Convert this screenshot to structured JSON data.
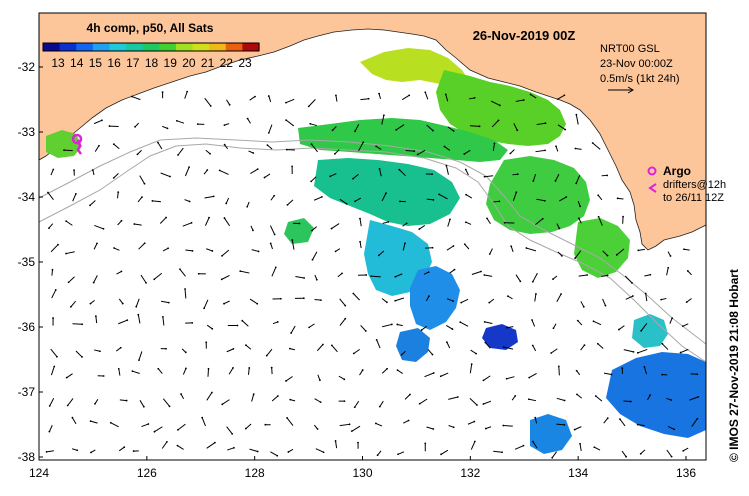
{
  "map": {
    "product_label": "4h comp, p50, All Sats",
    "date_title": "26-Nov-2019 00Z",
    "current_info": {
      "line1": "NRT00 GSL",
      "line2": "23-Nov 00:00Z",
      "line3": "0.5m/s (1kt 24h)"
    },
    "argo_label": "Argo",
    "drifters_line1": "drifters@12h",
    "drifters_line2": "to 26/11 12Z",
    "credit": "© IMOS 27-Nov-2019 21:08 Hobart",
    "colorbar": {
      "ticks": [
        "13",
        "14",
        "15",
        "16",
        "17",
        "18",
        "19",
        "20",
        "21",
        "22",
        "23"
      ],
      "colors": [
        "#0a0a8c",
        "#0b2fd0",
        "#1565f0",
        "#1fa0f0",
        "#20c8d8",
        "#18c8a0",
        "#20c860",
        "#40d030",
        "#a0e020",
        "#d0e018",
        "#f0b818",
        "#e86010",
        "#b00808"
      ]
    },
    "lon_ticks": [
      "124",
      "126",
      "128",
      "130",
      "132",
      "134",
      "136"
    ],
    "lat_ticks": [
      "-32",
      "-33",
      "-34",
      "-35",
      "-36",
      "-37",
      "-38"
    ],
    "colors": {
      "land": "#fdc59a",
      "ocean": "#ffffff",
      "argo": "#e020e0",
      "drifter": "#e020e0",
      "isobath": "#a8a8a8",
      "arrow": "#000000"
    }
  }
}
